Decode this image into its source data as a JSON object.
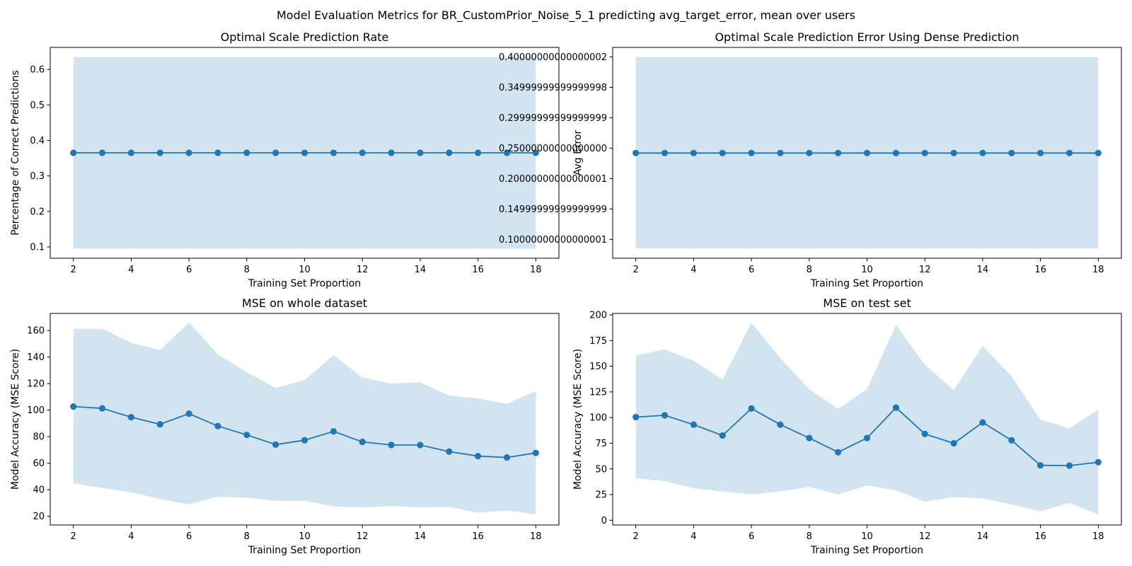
{
  "figure": {
    "suptitle": "Model Evaluation Metrics for BR_CustomPrior_Noise_5_1 predicting avg_target_error, mean over users",
    "colors": {
      "line": "#1f77b4",
      "band": "#1f77b4",
      "band_opacity": 0.2
    }
  },
  "chart_data": [
    {
      "type": "line",
      "title": "Optimal Scale Prediction Rate",
      "xlabel": "Training Set Proportion",
      "ylabel": "Percentage of Correct Predictions",
      "x": [
        2,
        3,
        4,
        5,
        6,
        7,
        8,
        9,
        10,
        11,
        12,
        13,
        14,
        15,
        16,
        17,
        18
      ],
      "xticks": [
        2,
        4,
        6,
        8,
        10,
        12,
        14,
        16,
        18
      ],
      "xlim": [
        1.2,
        18.8
      ],
      "yticks": [
        0.1,
        0.2,
        0.3,
        0.4,
        0.5,
        0.6
      ],
      "ylim": [
        0.068,
        0.662
      ],
      "series": [
        {
          "values": [
            0.365,
            0.365,
            0.365,
            0.365,
            0.365,
            0.365,
            0.365,
            0.365,
            0.365,
            0.365,
            0.365,
            0.365,
            0.365,
            0.365,
            0.365,
            0.365,
            0.365
          ],
          "lower": [
            0.095,
            0.095,
            0.095,
            0.095,
            0.095,
            0.095,
            0.095,
            0.095,
            0.095,
            0.095,
            0.095,
            0.095,
            0.095,
            0.095,
            0.095,
            0.095,
            0.095
          ],
          "upper": [
            0.635,
            0.635,
            0.635,
            0.635,
            0.635,
            0.635,
            0.635,
            0.635,
            0.635,
            0.635,
            0.635,
            0.635,
            0.635,
            0.635,
            0.635,
            0.635,
            0.635
          ]
        }
      ]
    },
    {
      "type": "line",
      "title": "Optimal Scale Prediction Error Using Dense Prediction",
      "xlabel": "Training Set Proportion",
      "ylabel": "Avg Error",
      "x": [
        2,
        3,
        4,
        5,
        6,
        7,
        8,
        9,
        10,
        11,
        12,
        13,
        14,
        15,
        16,
        17,
        18
      ],
      "xticks": [
        2,
        4,
        6,
        8,
        10,
        12,
        14,
        16,
        18
      ],
      "xlim": [
        1.2,
        18.8
      ],
      "yticks": [
        0.1,
        0.15,
        0.2,
        0.25,
        0.3,
        0.35,
        0.4
      ],
      "ylim": [
        0.069,
        0.4157
      ],
      "series": [
        {
          "values": [
            0.242,
            0.242,
            0.242,
            0.242,
            0.242,
            0.242,
            0.242,
            0.242,
            0.242,
            0.242,
            0.242,
            0.242,
            0.242,
            0.242,
            0.242,
            0.242,
            0.242
          ],
          "lower": [
            0.085,
            0.085,
            0.085,
            0.085,
            0.085,
            0.085,
            0.085,
            0.085,
            0.085,
            0.085,
            0.085,
            0.085,
            0.085,
            0.085,
            0.085,
            0.085,
            0.085
          ],
          "upper": [
            0.4,
            0.4,
            0.4,
            0.4,
            0.4,
            0.4,
            0.4,
            0.4,
            0.4,
            0.4,
            0.4,
            0.4,
            0.4,
            0.4,
            0.4,
            0.4,
            0.4
          ]
        }
      ]
    },
    {
      "type": "line",
      "title": "MSE on whole dataset",
      "xlabel": "Training Set Proportion",
      "ylabel": "Model Accuracy (MSE Score)",
      "x": [
        2,
        3,
        4,
        5,
        6,
        7,
        8,
        9,
        10,
        11,
        12,
        13,
        14,
        15,
        16,
        17,
        18
      ],
      "xticks": [
        2,
        4,
        6,
        8,
        10,
        12,
        14,
        16,
        18
      ],
      "xlim": [
        1.2,
        18.8
      ],
      "yticks": [
        20,
        40,
        60,
        80,
        100,
        120,
        140,
        160
      ],
      "ylim": [
        13.4,
        172.9
      ],
      "series": [
        {
          "values": [
            102.7,
            101.3,
            94.7,
            89.3,
            97.3,
            88.0,
            81.3,
            74.0,
            77.3,
            84.0,
            76.0,
            73.7,
            73.7,
            68.7,
            65.3,
            64.3,
            67.7
          ],
          "lower": [
            44.7,
            41.3,
            38.0,
            33.0,
            29.0,
            34.7,
            34.0,
            31.7,
            31.7,
            27.3,
            26.7,
            27.7,
            26.7,
            27.0,
            22.7,
            24.3,
            21.5
          ],
          "upper": [
            161.3,
            161.3,
            150.7,
            145.3,
            166.0,
            142.0,
            128.7,
            116.7,
            122.7,
            141.3,
            124.7,
            120.0,
            121.0,
            111.0,
            108.7,
            104.7,
            114.3
          ]
        }
      ]
    },
    {
      "type": "line",
      "title": "MSE on test set",
      "xlabel": "Training Set Proportion",
      "ylabel": "Model Accuracy (MSE Score)",
      "x": [
        2,
        3,
        4,
        5,
        6,
        7,
        8,
        9,
        10,
        11,
        12,
        13,
        14,
        15,
        16,
        17,
        18
      ],
      "xticks": [
        2,
        4,
        6,
        8,
        10,
        12,
        14,
        16,
        18
      ],
      "xlim": [
        1.2,
        18.8
      ],
      "yticks": [
        0,
        25,
        50,
        75,
        100,
        125,
        150,
        175,
        200
      ],
      "ylim": [
        -4.6,
        201.4
      ],
      "series": [
        {
          "values": [
            100.5,
            102.2,
            93.1,
            82.5,
            108.8,
            93.1,
            80.1,
            66.2,
            80.1,
            109.6,
            84.1,
            74.9,
            95.2,
            77.9,
            53.5,
            53.2,
            56.5
          ],
          "lower": [
            40.8,
            38.1,
            31.1,
            28.1,
            25.2,
            28.1,
            32.5,
            25.2,
            33.8,
            29.2,
            17.9,
            22.6,
            21.2,
            15.4,
            8.6,
            16.8,
            5.5
          ],
          "upper": [
            160.4,
            166.5,
            155.4,
            137.1,
            192.4,
            158.0,
            127.6,
            108.4,
            127.6,
            190.2,
            151.5,
            126.7,
            169.7,
            140.1,
            97.9,
            89.6,
            107.6
          ]
        }
      ]
    }
  ]
}
